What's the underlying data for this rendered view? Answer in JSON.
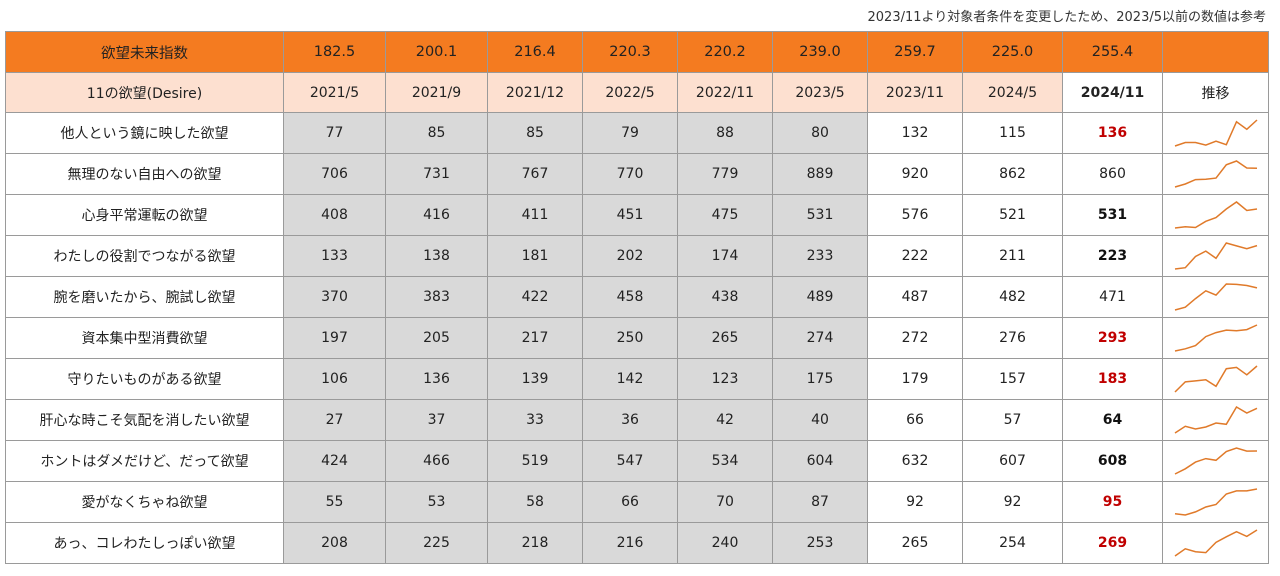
{
  "note": "2023/11より対象者条件を変更したため、2023/5以前の数値は参考",
  "index_row": {
    "label": "欲望未来指数",
    "values": [
      "182.5",
      "200.1",
      "216.4",
      "220.3",
      "220.2",
      "239.0",
      "259.7",
      "225.0",
      "255.4"
    ]
  },
  "header": {
    "label": "11の欲望(Desire)",
    "periods": [
      "2021/5",
      "2021/9",
      "2021/12",
      "2022/5",
      "2022/11",
      "2023/5",
      "2023/11",
      "2024/5",
      "2024/11"
    ],
    "trend_label": "推移"
  },
  "colors": {
    "index_bg": "#f47b20",
    "header_bg": "#fde0d0",
    "past_bg": "#d9d9d9",
    "highlight": "#c00000",
    "spark": "#e07a2a"
  },
  "rows": [
    {
      "label": "他人という鏡に映した欲望",
      "values": [
        77,
        85,
        85,
        79,
        88,
        80,
        132,
        115,
        136
      ],
      "latest_style": "up"
    },
    {
      "label": "無理のない自由への欲望",
      "values": [
        706,
        731,
        767,
        770,
        779,
        889,
        920,
        862,
        860
      ],
      "latest_style": "plain"
    },
    {
      "label": "心身平常運転の欲望",
      "values": [
        408,
        416,
        411,
        451,
        475,
        531,
        576,
        521,
        531
      ],
      "latest_style": "norm"
    },
    {
      "label": "わたしの役割でつながる欲望",
      "values": [
        133,
        138,
        181,
        202,
        174,
        233,
        222,
        211,
        223
      ],
      "latest_style": "norm"
    },
    {
      "label": "腕を磨いたから、腕試し欲望",
      "values": [
        370,
        383,
        422,
        458,
        438,
        489,
        487,
        482,
        471
      ],
      "latest_style": "plain"
    },
    {
      "label": "資本集中型消費欲望",
      "values": [
        197,
        205,
        217,
        250,
        265,
        274,
        272,
        276,
        293
      ],
      "latest_style": "up"
    },
    {
      "label": "守りたいものがある欲望",
      "values": [
        106,
        136,
        139,
        142,
        123,
        175,
        179,
        157,
        183
      ],
      "latest_style": "up"
    },
    {
      "label": "肝心な時こそ気配を消したい欲望",
      "values": [
        27,
        37,
        33,
        36,
        42,
        40,
        66,
        57,
        64
      ],
      "latest_style": "norm"
    },
    {
      "label": "ホントはダメだけど、だって欲望",
      "values": [
        424,
        466,
        519,
        547,
        534,
        604,
        632,
        607,
        608
      ],
      "latest_style": "norm"
    },
    {
      "label": "愛がなくちゃね欲望",
      "values": [
        55,
        53,
        58,
        66,
        70,
        87,
        92,
        92,
        95
      ],
      "latest_style": "up"
    },
    {
      "label": "あっ、コレわたしっぽい欲望",
      "values": [
        208,
        225,
        218,
        216,
        240,
        253,
        265,
        254,
        269
      ],
      "latest_style": "up"
    }
  ]
}
